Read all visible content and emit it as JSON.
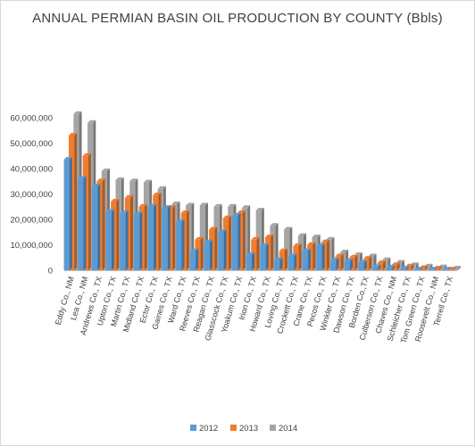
{
  "chart_data": {
    "type": "bar",
    "title": "ANNUAL PERMIAN BASIN OIL PRODUCTION BY COUNTY (Bbls)",
    "xlabel": "",
    "ylabel": "",
    "ylim": [
      0,
      60000000
    ],
    "yticks": [
      0,
      10000000,
      20000000,
      30000000,
      40000000,
      50000000,
      60000000
    ],
    "ytick_labels": [
      "0",
      "10,000,000",
      "20,000,000",
      "30,000,000",
      "40,000,000",
      "50,000,000",
      "60,000,000"
    ],
    "legend_position": "bottom",
    "grid": false,
    "categories": [
      "Eddy Co., NM",
      "Lea Co., NM",
      "Andrews Co., TX",
      "Upton Co., TX",
      "Martin Co., TX",
      "Midland Co., TX",
      "Ector Co., TX",
      "Gaines Co., TX",
      "Ward Co., TX",
      "Reeves Co., TX",
      "Reagan Co., TX",
      "Glasscock Co., TX",
      "Yoakum Co., TX",
      "Irion Co., TX",
      "Howard Co., TX",
      "Loving Co., TX",
      "Crockett Co., TX",
      "Crane Co., TX",
      "Pecos Co., TX",
      "Winkler Co., TX",
      "Dawson Co., TX",
      "Borden Co.,TX",
      "Culberson Co., TX",
      "Chaves Co., NM",
      "Schleicher Co., TX",
      "Tom Green Co., TX",
      "Roosevelt Co., NM",
      "Terrell Co., TX"
    ],
    "series": [
      {
        "name": "2012",
        "color": "#5b9bd5",
        "values": [
          43500000,
          36000000,
          33000000,
          23000000,
          22500000,
          22000000,
          25000000,
          24500000,
          19000000,
          7500000,
          11000000,
          15000000,
          21500000,
          6000000,
          9500000,
          4000000,
          5500000,
          7500000,
          9500000,
          3800000,
          3500000,
          3000000,
          1200000,
          1000000,
          600000,
          300000,
          200000,
          100000
        ]
      },
      {
        "name": "2013",
        "color": "#ed7d31",
        "values": [
          53000000,
          45000000,
          35000000,
          27000000,
          28500000,
          25000000,
          29500000,
          24500000,
          22500000,
          12000000,
          16000000,
          20500000,
          22500000,
          12000000,
          13000000,
          7500000,
          9500000,
          10000000,
          11000000,
          5500000,
          5000000,
          4500000,
          2800000,
          2000000,
          1500000,
          900000,
          700000,
          300000
        ]
      },
      {
        "name": "2014",
        "color": "#a5a5a5",
        "values": [
          61500000,
          58000000,
          39000000,
          35500000,
          35000000,
          34500000,
          32000000,
          26000000,
          25500000,
          25500000,
          25000000,
          25000000,
          24500000,
          23500000,
          17500000,
          16000000,
          13500000,
          13000000,
          12000000,
          7000000,
          6000000,
          5500000,
          4000000,
          3000000,
          2000000,
          1500000,
          1200000,
          700000
        ]
      }
    ]
  }
}
